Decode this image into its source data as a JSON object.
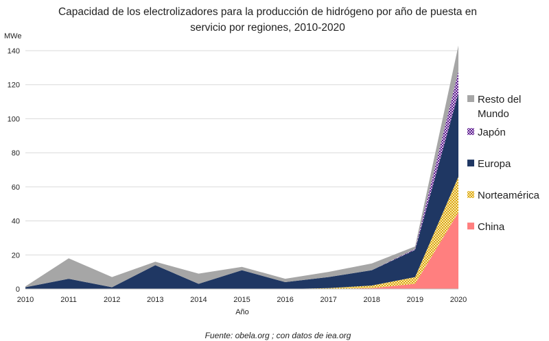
{
  "chart_data": {
    "type": "area",
    "stacked": true,
    "title_line1": "Capacidad de los electrolizadores para la producción de hidrógeno por año de puesta en",
    "title_line2": "servicio por regiones, 2010-2020",
    "ylabel": "MWe",
    "xlabel": "Año",
    "ylim": [
      0,
      140
    ],
    "yticks": [
      "0",
      "20",
      "40",
      "60",
      "80",
      "100",
      "120",
      "140"
    ],
    "x": [
      "2010",
      "2011",
      "2012",
      "2013",
      "2014",
      "2015",
      "2016",
      "2017",
      "2018",
      "2019",
      "2020"
    ],
    "grid": true,
    "legend_position": "right",
    "series": [
      {
        "name": "China",
        "color": "#ff7f7f",
        "values": [
          0,
          0,
          0,
          0,
          0,
          0,
          0,
          0,
          0.5,
          3,
          45
        ]
      },
      {
        "name": "Norteamérica",
        "color": "#f2c84b",
        "values": [
          0,
          0,
          0,
          0,
          0,
          0,
          0,
          0.5,
          1.5,
          4,
          21
        ]
      },
      {
        "name": "Europa",
        "color": "#1f3763",
        "values": [
          1,
          6,
          1,
          14,
          3,
          11,
          4,
          6.5,
          9,
          16,
          49
        ]
      },
      {
        "name": "Japón",
        "color": "#7030a0",
        "values": [
          0,
          0,
          0,
          0,
          0,
          0,
          0,
          0,
          0,
          0.5,
          13
        ]
      },
      {
        "name": "Resto del Mundo",
        "color": "#a6a6a6",
        "values": [
          0.5,
          12,
          6,
          2,
          6,
          2,
          2,
          3,
          4,
          1.5,
          15
        ]
      }
    ],
    "legend": [
      {
        "label": "Resto del Mundo",
        "lines": [
          "Resto del",
          "Mundo"
        ],
        "color": "#a6a6a6",
        "pattern": "solid"
      },
      {
        "label": "Japón",
        "lines": [
          "Japón"
        ],
        "color": "#7030a0",
        "pattern": "check"
      },
      {
        "label": "Europa",
        "lines": [
          "Europa"
        ],
        "color": "#1f3763",
        "pattern": "solid"
      },
      {
        "label": "Norteamérica",
        "lines": [
          "Norteamérica"
        ],
        "color": "#f2c84b",
        "pattern": "check"
      },
      {
        "label": "China",
        "lines": [
          "China"
        ],
        "color": "#ff7f7f",
        "pattern": "solid"
      }
    ],
    "source": "Fuente: obela.org ; con datos de iea.org"
  }
}
